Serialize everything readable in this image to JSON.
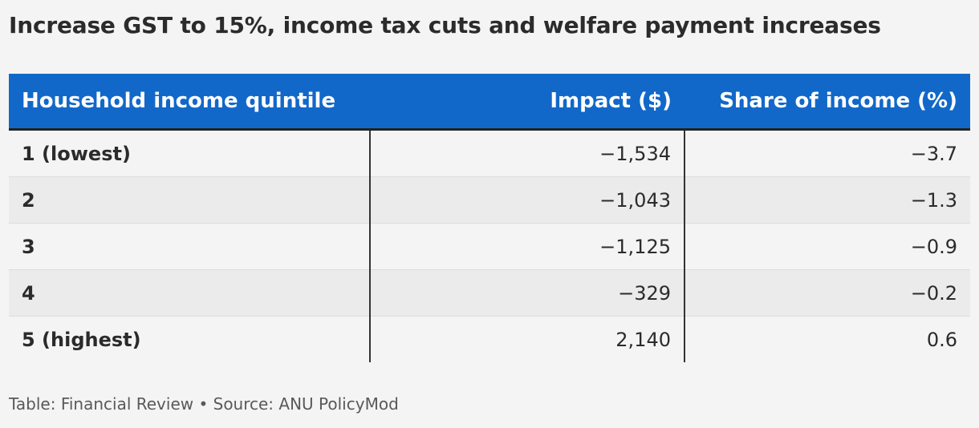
{
  "title": "Increase GST to 15%, income tax cuts and welfare payment increases",
  "chart_data": {
    "type": "table",
    "title": "Increase GST to 15%, income tax cuts and welfare payment increases",
    "columns": [
      "Household income quintile",
      "Impact ($)",
      "Share of income (%)"
    ],
    "rows": [
      [
        "1 (lowest)",
        "−1,534",
        "−3.7"
      ],
      [
        "2",
        "−1,043",
        "−1.3"
      ],
      [
        "3",
        "−1,125",
        "−0.9"
      ],
      [
        "4",
        "−329",
        "−0.2"
      ],
      [
        "5 (highest)",
        "2,140",
        "0.6"
      ]
    ]
  },
  "footer": "Table: Financial Review • Source: ANU PolicyMod",
  "colors": {
    "header_bg": "#1268c9",
    "page_bg": "#f4f4f4",
    "stripe_bg": "#ebebeb"
  }
}
